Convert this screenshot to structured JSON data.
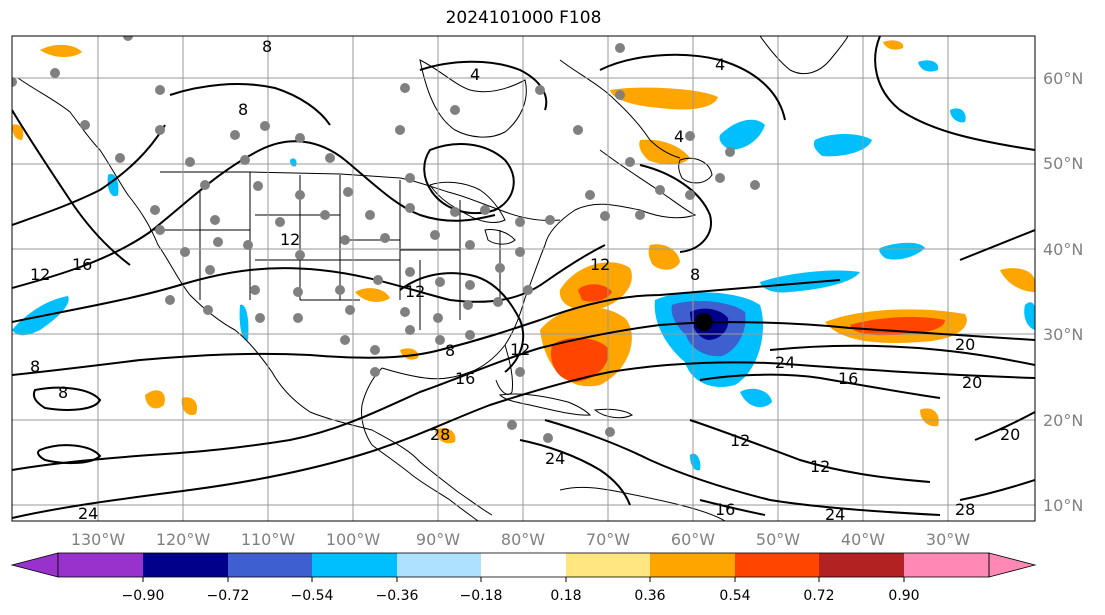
{
  "title": "2024101000 F108",
  "longitude_labels": [
    "130°W",
    "120°W",
    "110°W",
    "100°W",
    "90°W",
    "80°W",
    "70°W",
    "60°W",
    "50°W",
    "40°W",
    "30°W"
  ],
  "latitude_labels": [
    "60°N",
    "50°N",
    "40°N",
    "30°N",
    "20°N",
    "10°N"
  ],
  "contour_labels": [
    "8",
    "4",
    "4",
    "4",
    "12",
    "8",
    "12",
    "16",
    "12",
    "8",
    "8",
    "12",
    "16",
    "12",
    "8",
    "24",
    "16",
    "20",
    "20",
    "12",
    "28",
    "24",
    "20",
    "12",
    "24",
    "16",
    "28",
    "24",
    "8"
  ],
  "colorbar": {
    "tick_labels": [
      "−0.90",
      "−0.72",
      "−0.54",
      "−0.36",
      "−0.18",
      "0.18",
      "0.36",
      "0.54",
      "0.72",
      "0.90"
    ],
    "colors": [
      "#9932cc",
      "#00008b",
      "#3e5fcf",
      "#00bfff",
      "#aee1ff",
      "#ffffff",
      "#ffe680",
      "#ffa500",
      "#ff4500",
      "#b22222",
      "#ff88b4"
    ]
  },
  "shading_colors": {
    "pos_light": "#ffe680",
    "pos_mid": "#ffa500",
    "pos_strong": "#ff4500",
    "pos_max": "#b22222",
    "neg_light": "#aee1ff",
    "neg_mid": "#00bfff",
    "neg_strong": "#3e5fcf",
    "neg_max": "#00008b"
  },
  "station_marker_color": "#808080"
}
